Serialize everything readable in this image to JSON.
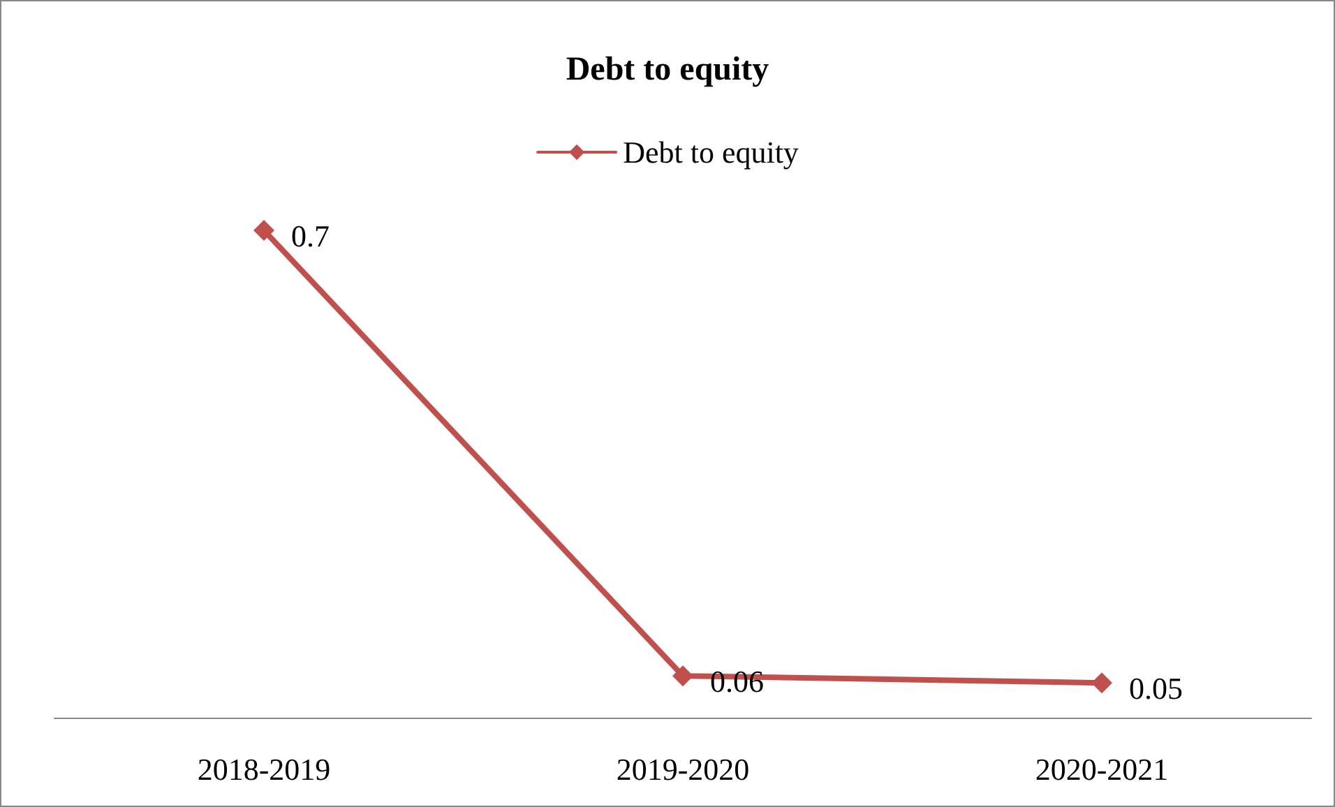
{
  "chart_data": {
    "type": "line",
    "title": "Debt to equity",
    "categories": [
      "2018-2019",
      "2019-2020",
      "2020-2021"
    ],
    "series": [
      {
        "name": "Debt to equity",
        "color": "#c0504d",
        "values": [
          0.7,
          0.06,
          0.05
        ]
      }
    ],
    "data_labels": true,
    "legend": "top",
    "grid": false,
    "marker": "diamond",
    "line_style": "solid"
  }
}
